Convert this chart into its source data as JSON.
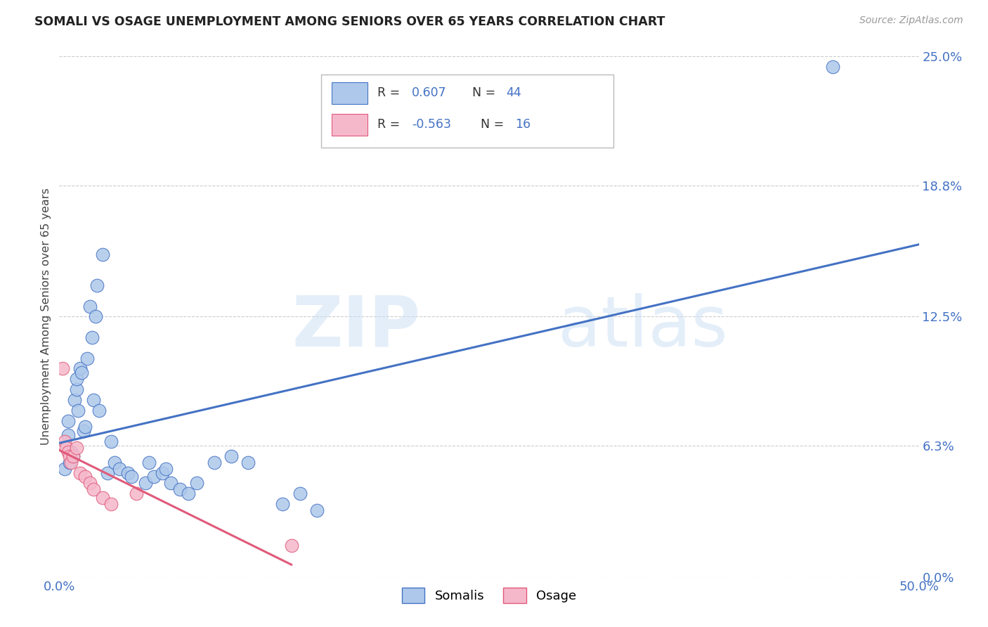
{
  "title": "SOMALI VS OSAGE UNEMPLOYMENT AMONG SENIORS OVER 65 YEARS CORRELATION CHART",
  "source": "Source: ZipAtlas.com",
  "ylabel": "Unemployment Among Seniors over 65 years",
  "xlim": [
    0,
    50
  ],
  "ylim": [
    0,
    25
  ],
  "somali_R": "0.607",
  "somali_N": "44",
  "osage_R": "-0.563",
  "osage_N": "16",
  "somali_color": "#adc8ea",
  "osage_color": "#f5b8cb",
  "somali_line_color": "#4472c4",
  "osage_line_color": "#e05a7a",
  "watermark_zip": "ZIP",
  "watermark_atlas": "atlas",
  "background_color": "#ffffff",
  "grid_color": "#cccccc",
  "ylabel_vals": [
    0.0,
    6.3,
    12.5,
    18.8,
    25.0
  ],
  "ylabel_labels": [
    "0.0%",
    "6.3%",
    "12.5%",
    "18.8%",
    "25.0%"
  ],
  "xlabel_vals": [
    0,
    50
  ],
  "xlabel_labels": [
    "0.0%",
    "50.0%"
  ],
  "somali_x": [
    0.3,
    0.5,
    0.5,
    0.6,
    0.7,
    0.8,
    0.9,
    1.0,
    1.0,
    1.1,
    1.2,
    1.3,
    1.4,
    1.5,
    1.6,
    1.8,
    1.9,
    2.0,
    2.1,
    2.2,
    2.3,
    2.5,
    2.8,
    3.0,
    3.2,
    3.5,
    4.0,
    4.2,
    5.0,
    5.2,
    5.5,
    6.0,
    6.2,
    6.5,
    7.0,
    7.5,
    8.0,
    9.0,
    10.0,
    11.0,
    13.0,
    14.0,
    15.0,
    45.0
  ],
  "somali_y": [
    5.2,
    6.8,
    7.5,
    5.5,
    6.0,
    5.8,
    8.5,
    9.0,
    9.5,
    8.0,
    10.0,
    9.8,
    7.0,
    7.2,
    10.5,
    13.0,
    11.5,
    8.5,
    12.5,
    14.0,
    8.0,
    15.5,
    5.0,
    6.5,
    5.5,
    5.2,
    5.0,
    4.8,
    4.5,
    5.5,
    4.8,
    5.0,
    5.2,
    4.5,
    4.2,
    4.0,
    4.5,
    5.5,
    5.8,
    5.5,
    3.5,
    4.0,
    3.2,
    24.5
  ],
  "osage_x": [
    0.2,
    0.3,
    0.4,
    0.5,
    0.6,
    0.7,
    0.8,
    1.0,
    1.2,
    1.5,
    1.8,
    2.0,
    2.5,
    3.0,
    4.5,
    13.5
  ],
  "osage_y": [
    10.0,
    6.5,
    6.2,
    6.0,
    5.8,
    5.5,
    5.8,
    6.2,
    5.0,
    4.8,
    4.5,
    4.2,
    3.8,
    3.5,
    4.0,
    1.5
  ],
  "somali_line_x0": 0.0,
  "somali_line_x1": 50.0,
  "osage_line_x0": 0.0,
  "osage_line_x1": 13.5
}
